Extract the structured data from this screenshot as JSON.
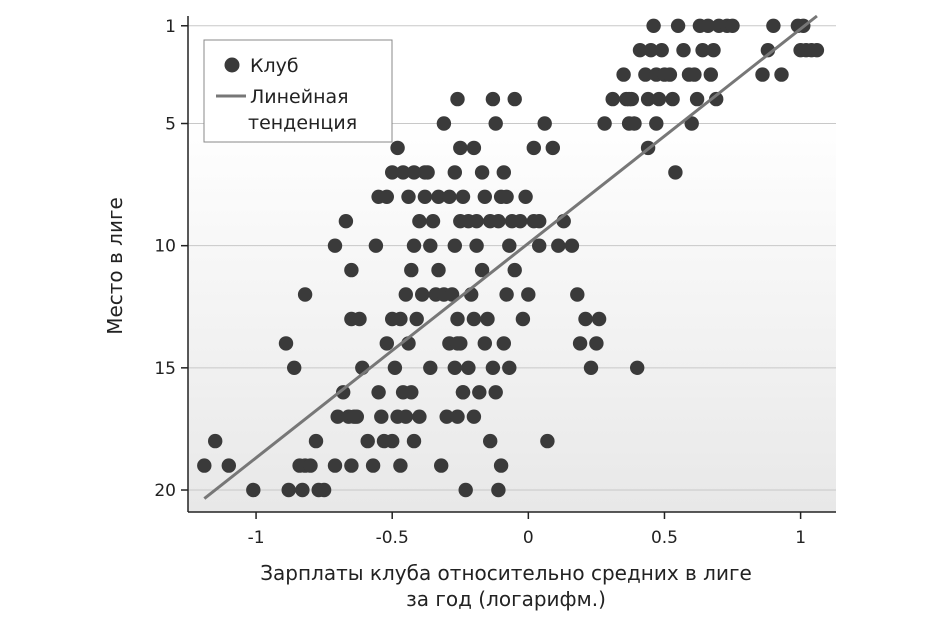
{
  "chart_data": {
    "type": "scatter",
    "xlabel_lines": [
      "Зарплаты клуба относительно средних в лиге",
      "за год (логарифм.)"
    ],
    "ylabel": "Место в лиге",
    "xlim": [
      -1.25,
      1.13
    ],
    "ylim": [
      20.9,
      0.6
    ],
    "y_inverted": true,
    "xticks": [
      -1,
      -0.5,
      0,
      0.5,
      1
    ],
    "xtick_labels": [
      "-1",
      "-0.5",
      "0",
      "0.5",
      "1"
    ],
    "yticks": [
      1,
      5,
      10,
      15,
      20
    ],
    "ytick_labels": [
      "1",
      "5",
      "10",
      "15",
      "20"
    ],
    "grid": true,
    "legend": {
      "placement": "top-left",
      "entries": [
        {
          "label": "Клуб",
          "marker": "dot"
        },
        {
          "label_lines": [
            "Линейная",
            "тенденция"
          ],
          "marker": "line"
        }
      ]
    },
    "colors": {
      "points": "#3a3a3a",
      "trend": "#777777",
      "grid": "#c8c8c8",
      "plot_bg_top": "#ffffff",
      "plot_bg_bottom": "#ececec"
    },
    "series": [
      {
        "kind": "points",
        "points": [
          [
            -1.19,
            19
          ],
          [
            -1.15,
            18
          ],
          [
            -1.1,
            19
          ],
          [
            -1.01,
            20
          ],
          [
            -0.89,
            14
          ],
          [
            -0.88,
            20
          ],
          [
            -0.86,
            15
          ],
          [
            -0.84,
            19
          ],
          [
            -0.83,
            20
          ],
          [
            -0.82,
            19
          ],
          [
            -0.8,
            19
          ],
          [
            -0.78,
            18
          ],
          [
            -0.77,
            20
          ],
          [
            -0.75,
            20
          ],
          [
            -0.71,
            19
          ],
          [
            -0.7,
            17
          ],
          [
            -0.68,
            16
          ],
          [
            -0.66,
            17
          ],
          [
            -0.65,
            19
          ],
          [
            -0.64,
            17
          ],
          [
            -0.63,
            17
          ],
          [
            -0.61,
            15
          ],
          [
            -0.59,
            18
          ],
          [
            -0.57,
            19
          ],
          [
            -0.55,
            16
          ],
          [
            -0.54,
            17
          ],
          [
            -0.53,
            18
          ],
          [
            -0.82,
            12
          ],
          [
            -0.71,
            10
          ],
          [
            -0.67,
            9
          ],
          [
            -0.65,
            11
          ],
          [
            -0.65,
            13
          ],
          [
            -0.62,
            13
          ],
          [
            -0.56,
            10
          ],
          [
            -0.55,
            8
          ],
          [
            -0.52,
            14
          ],
          [
            -0.5,
            13
          ],
          [
            -0.5,
            18
          ],
          [
            -0.49,
            15
          ],
          [
            -0.48,
            17
          ],
          [
            -0.47,
            13
          ],
          [
            -0.47,
            19
          ],
          [
            -0.46,
            16
          ],
          [
            -0.45,
            17
          ],
          [
            -0.45,
            12
          ],
          [
            -0.44,
            14
          ],
          [
            -0.43,
            16
          ],
          [
            -0.43,
            11
          ],
          [
            -0.42,
            10
          ],
          [
            -0.42,
            18
          ],
          [
            -0.41,
            13
          ],
          [
            -0.4,
            17
          ],
          [
            -0.39,
            12
          ],
          [
            -0.38,
            8
          ],
          [
            -0.38,
            7
          ],
          [
            -0.36,
            15
          ],
          [
            -0.35,
            9
          ],
          [
            -0.34,
            12
          ],
          [
            -0.33,
            11
          ],
          [
            -0.32,
            19
          ],
          [
            -0.31,
            12
          ],
          [
            -0.3,
            17
          ],
          [
            -0.29,
            14
          ],
          [
            -0.28,
            12
          ],
          [
            -0.27,
            15
          ],
          [
            -0.27,
            10
          ],
          [
            -0.26,
            13
          ],
          [
            -0.26,
            17
          ],
          [
            -0.25,
            9
          ],
          [
            -0.25,
            14
          ],
          [
            -0.24,
            16
          ],
          [
            -0.23,
            20
          ],
          [
            -0.22,
            15
          ],
          [
            -0.21,
            12
          ],
          [
            -0.2,
            13
          ],
          [
            -0.2,
            17
          ],
          [
            -0.19,
            9
          ],
          [
            -0.18,
            16
          ],
          [
            -0.17,
            11
          ],
          [
            -0.16,
            14
          ],
          [
            -0.15,
            13
          ],
          [
            -0.14,
            18
          ],
          [
            -0.13,
            15
          ],
          [
            -0.12,
            16
          ],
          [
            -0.11,
            20
          ],
          [
            -0.11,
            9
          ],
          [
            -0.1,
            19
          ],
          [
            -0.09,
            14
          ],
          [
            -0.08,
            12
          ],
          [
            -0.07,
            15
          ],
          [
            -0.52,
            8
          ],
          [
            -0.5,
            7
          ],
          [
            -0.48,
            6
          ],
          [
            -0.46,
            7
          ],
          [
            -0.44,
            8
          ],
          [
            -0.42,
            7
          ],
          [
            -0.4,
            9
          ],
          [
            -0.37,
            7
          ],
          [
            -0.36,
            10
          ],
          [
            -0.33,
            8
          ],
          [
            -0.31,
            5
          ],
          [
            -0.29,
            8
          ],
          [
            -0.27,
            7
          ],
          [
            -0.25,
            6
          ],
          [
            -0.24,
            8
          ],
          [
            -0.22,
            9
          ],
          [
            -0.2,
            6
          ],
          [
            -0.19,
            10
          ],
          [
            -0.17,
            7
          ],
          [
            -0.16,
            8
          ],
          [
            -0.14,
            9
          ],
          [
            -0.13,
            4
          ],
          [
            -0.12,
            5
          ],
          [
            -0.1,
            8
          ],
          [
            -0.09,
            7
          ],
          [
            -0.08,
            8
          ],
          [
            -0.07,
            10
          ],
          [
            -0.06,
            9
          ],
          [
            -0.05,
            4
          ],
          [
            -0.05,
            11
          ],
          [
            -0.03,
            9
          ],
          [
            -0.01,
            8
          ],
          [
            0.0,
            12
          ],
          [
            0.02,
            9
          ],
          [
            0.04,
            10
          ],
          [
            -0.26,
            4
          ],
          [
            -0.26,
            14
          ],
          [
            -0.24,
            16
          ],
          [
            -0.02,
            13
          ],
          [
            0.02,
            6
          ],
          [
            0.04,
            9
          ],
          [
            0.06,
            5
          ],
          [
            0.07,
            18
          ],
          [
            0.09,
            6
          ],
          [
            0.11,
            10
          ],
          [
            0.13,
            9
          ],
          [
            0.16,
            10
          ],
          [
            0.18,
            12
          ],
          [
            0.19,
            14
          ],
          [
            0.21,
            13
          ],
          [
            0.23,
            15
          ],
          [
            0.25,
            14
          ],
          [
            0.26,
            13
          ],
          [
            0.28,
            5
          ],
          [
            0.31,
            4
          ],
          [
            0.36,
            4
          ],
          [
            0.37,
            5
          ],
          [
            0.38,
            4
          ],
          [
            0.4,
            15
          ],
          [
            0.44,
            6
          ],
          [
            0.47,
            5
          ],
          [
            0.54,
            7
          ],
          [
            0.35,
            3
          ],
          [
            0.37,
            4
          ],
          [
            0.39,
            5
          ],
          [
            0.41,
            2
          ],
          [
            0.43,
            3
          ],
          [
            0.44,
            4
          ],
          [
            0.45,
            2
          ],
          [
            0.46,
            1
          ],
          [
            0.47,
            3
          ],
          [
            0.48,
            4
          ],
          [
            0.49,
            2
          ],
          [
            0.5,
            3
          ],
          [
            0.52,
            3
          ],
          [
            0.53,
            4
          ],
          [
            0.55,
            1
          ],
          [
            0.57,
            2
          ],
          [
            0.59,
            3
          ],
          [
            0.6,
            5
          ],
          [
            0.61,
            3
          ],
          [
            0.62,
            4
          ],
          [
            0.63,
            1
          ],
          [
            0.64,
            2
          ],
          [
            0.66,
            1
          ],
          [
            0.67,
            3
          ],
          [
            0.68,
            2
          ],
          [
            0.69,
            4
          ],
          [
            0.7,
            1
          ],
          [
            0.73,
            1
          ],
          [
            0.75,
            1
          ],
          [
            0.86,
            3
          ],
          [
            0.88,
            2
          ],
          [
            0.9,
            1
          ],
          [
            0.93,
            3
          ],
          [
            0.99,
            1
          ],
          [
            1.0,
            2
          ],
          [
            1.01,
            1
          ],
          [
            1.02,
            2
          ],
          [
            1.04,
            2
          ],
          [
            1.06,
            2
          ]
        ]
      },
      {
        "kind": "trend",
        "x": [
          -1.19,
          1.06
        ],
        "y": [
          20.35,
          0.6
        ]
      }
    ]
  }
}
